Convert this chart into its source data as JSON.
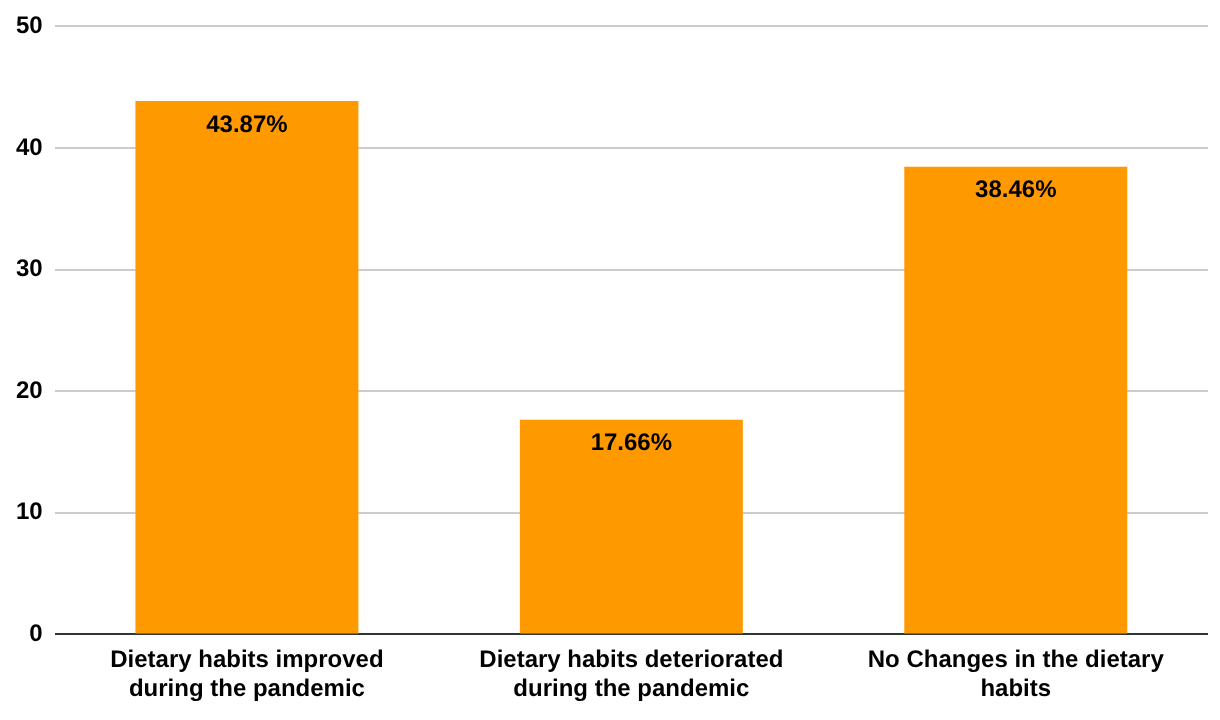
{
  "chart_data": {
    "type": "bar",
    "categories": [
      "Dietary habits improved during the pandemic",
      "Dietary habits deteriorated during the pandemic",
      "No Changes in the dietary habits"
    ],
    "values": [
      43.87,
      17.66,
      38.46
    ],
    "value_labels": [
      "43.87%",
      "17.66%",
      "38.46%"
    ],
    "color": "#ff9900",
    "ylim": [
      0,
      50
    ],
    "yticks": [
      0,
      10,
      20,
      30,
      40,
      50
    ],
    "grid": "y",
    "legend": false
  }
}
